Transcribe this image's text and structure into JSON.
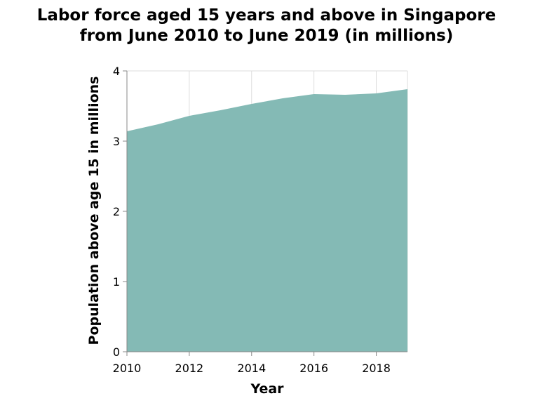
{
  "chart_data": {
    "type": "area",
    "title": [
      "Labor force aged 15 years and above in Singapore",
      "from June 2010 to June 2019 (in millions)"
    ],
    "xlabel": "Year",
    "ylabel": "Population above age 15 in millions",
    "x": [
      2010,
      2011,
      2012,
      2013,
      2014,
      2015,
      2016,
      2017,
      2018,
      2019
    ],
    "series": [
      {
        "values": [
          3.14,
          3.24,
          3.36,
          3.44,
          3.53,
          3.61,
          3.67,
          3.66,
          3.68,
          3.74
        ]
      }
    ],
    "xlim": [
      2010,
      2019
    ],
    "ylim": [
      0,
      4
    ],
    "x_ticks": [
      "2010",
      "2012",
      "2014",
      "2016",
      "2018"
    ],
    "y_ticks": [
      "0",
      "1",
      "2",
      "3",
      "4"
    ],
    "grid": true,
    "colors": {
      "area": "#84bab5",
      "grid": "#dddddd",
      "axis": "#888888"
    }
  }
}
